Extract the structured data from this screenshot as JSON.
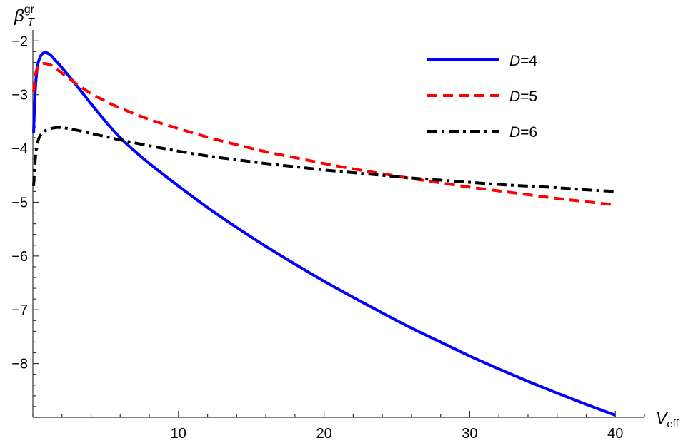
{
  "chart_data": {
    "type": "line",
    "title": "",
    "xlabel": {
      "base": "V",
      "sub": "eff"
    },
    "ylabel": {
      "base": "β",
      "sub": "T",
      "sup": "gr"
    },
    "xlim": [
      0,
      42
    ],
    "ylim": [
      -9,
      -1.85
    ],
    "x_major_ticks": [
      10,
      20,
      30,
      40
    ],
    "x_tick_labels": [
      "10",
      "20",
      "30",
      "40"
    ],
    "y_major_ticks": [
      -2,
      -3,
      -4,
      -5,
      -6,
      -7,
      -8
    ],
    "y_tick_labels": [
      "−2",
      "−3",
      "−4",
      "−5",
      "−6",
      "−7",
      "−8"
    ],
    "grid": false,
    "legend_position": "top-right",
    "series": [
      {
        "name": "D=4",
        "name_parts": [
          "D",
          "=4"
        ],
        "color": "#0000ff",
        "style": "solid",
        "x": [
          0.05,
          0.15,
          0.3,
          0.5,
          0.7,
          0.9,
          1.2,
          1.5,
          2,
          3,
          4,
          5,
          6,
          7,
          8,
          10,
          12,
          14,
          16,
          18,
          20,
          22,
          24,
          26,
          28,
          30,
          32,
          34,
          36,
          38,
          40
        ],
        "y": [
          -3.72,
          -3.0,
          -2.5,
          -2.3,
          -2.23,
          -2.22,
          -2.26,
          -2.35,
          -2.5,
          -2.83,
          -3.17,
          -3.5,
          -3.8,
          -4.05,
          -4.28,
          -4.7,
          -5.1,
          -5.47,
          -5.82,
          -6.15,
          -6.47,
          -6.77,
          -7.06,
          -7.34,
          -7.6,
          -7.86,
          -8.1,
          -8.33,
          -8.55,
          -8.76,
          -8.96
        ]
      },
      {
        "name": "D=5",
        "name_parts": [
          "D",
          "=5"
        ],
        "color": "#ff0000",
        "style": "dashed",
        "x": [
          0.05,
          0.2,
          0.4,
          0.6,
          0.8,
          1.0,
          1.3,
          1.6,
          2,
          3,
          4,
          5,
          6,
          8,
          10,
          12,
          14,
          16,
          18,
          20,
          22,
          24,
          26,
          28,
          30,
          32,
          34,
          36,
          38,
          40
        ],
        "y": [
          -2.95,
          -2.6,
          -2.47,
          -2.43,
          -2.42,
          -2.43,
          -2.46,
          -2.52,
          -2.6,
          -2.8,
          -2.98,
          -3.12,
          -3.25,
          -3.46,
          -3.63,
          -3.79,
          -3.93,
          -4.06,
          -4.17,
          -4.28,
          -4.38,
          -4.47,
          -4.56,
          -4.64,
          -4.72,
          -4.79,
          -4.86,
          -4.93,
          -4.99,
          -5.05
        ]
      },
      {
        "name": "D=6",
        "name_parts": [
          "D",
          "=6"
        ],
        "color": "#000000",
        "style": "dashdot",
        "x": [
          0.05,
          0.2,
          0.4,
          0.7,
          1.0,
          1.4,
          1.8,
          2.2,
          3,
          4,
          5,
          6,
          8,
          10,
          12,
          14,
          16,
          18,
          20,
          22,
          24,
          26,
          28,
          30,
          32,
          34,
          36,
          38,
          40
        ],
        "y": [
          -4.7,
          -4.1,
          -3.82,
          -3.7,
          -3.65,
          -3.62,
          -3.61,
          -3.62,
          -3.66,
          -3.72,
          -3.78,
          -3.84,
          -3.95,
          -4.05,
          -4.14,
          -4.21,
          -4.28,
          -4.34,
          -4.4,
          -4.45,
          -4.5,
          -4.55,
          -4.59,
          -4.63,
          -4.67,
          -4.7,
          -4.73,
          -4.77,
          -4.8
        ]
      }
    ]
  }
}
